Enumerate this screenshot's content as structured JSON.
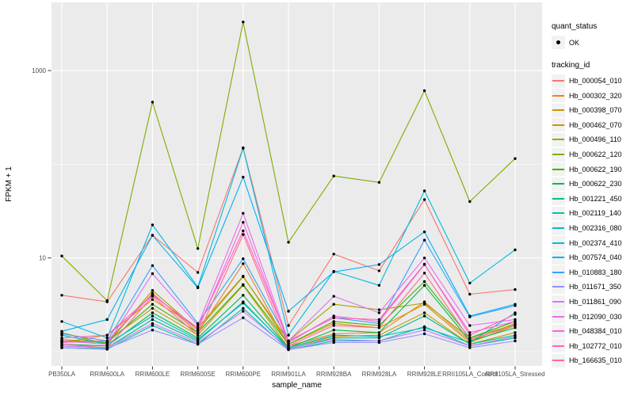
{
  "figure": {
    "colors": {
      "panel_bg": "#EBEBEB",
      "grid": "#FFFFFF",
      "tick": "#333333",
      "tick_label": "#4D4D4D",
      "axis_title": "#000000",
      "point": "#000000",
      "legend_key_bg": "#F2F2F2"
    },
    "legend": {
      "quant_status": {
        "title": "quant_status",
        "items": [
          {
            "label": "OK",
            "symbol": "point-icon"
          }
        ]
      },
      "tracking": {
        "title": "tracking_id"
      }
    }
  },
  "chart_data": {
    "type": "line",
    "title": "",
    "xlabel": "sample_name",
    "ylabel": "FPKM + 1",
    "y_scale": "log10",
    "y_major_ticks": [
      {
        "label": "1000",
        "value": 1000
      },
      {
        "label": "10",
        "value": 10
      }
    ],
    "y_minor_ticks": [
      100,
      1
    ],
    "ylim": [
      0.64,
      5400
    ],
    "grid": true,
    "legend_position": "right",
    "marker": "black point (quant_status OK)",
    "categories": [
      "PB350LA",
      "RRIM600LA",
      "RRIM600LE",
      "RRIM600SE",
      "RRIM600PE",
      "RRIM901LA",
      "RRIM928BA",
      "RRIM928LA",
      "RRIM928LE",
      "RRII105LA_Control",
      "RRII105LA_Stressed"
    ],
    "series": [
      {
        "name": "Hb_000054_010",
        "color": "#F8766D",
        "values": [
          4.0,
          3.4,
          17.5,
          7.0,
          150,
          1.9,
          11,
          7.3,
          42,
          4.1,
          4.6
        ]
      },
      {
        "name": "Hb_000302_320",
        "color": "#EA8331",
        "values": [
          1.35,
          1.25,
          4.2,
          1.6,
          8.7,
          1.15,
          1.55,
          1.6,
          3.4,
          1.3,
          2.0
        ]
      },
      {
        "name": "Hb_000398_070",
        "color": "#D89000",
        "values": [
          1.25,
          1.5,
          3.6,
          1.8,
          6.4,
          1.2,
          2.0,
          1.8,
          3.2,
          1.25,
          1.9
        ]
      },
      {
        "name": "Hb_000462_070",
        "color": "#C09B00",
        "values": [
          1.3,
          1.3,
          2.9,
          1.5,
          5.1,
          1.1,
          1.45,
          1.5,
          2.6,
          1.2,
          1.6
        ]
      },
      {
        "name": "Hb_000496_110",
        "color": "#A3A500",
        "values": [
          1.6,
          1.2,
          4.5,
          1.7,
          6.3,
          1.3,
          3.2,
          2.8,
          3.3,
          1.4,
          1.95
        ]
      },
      {
        "name": "Hb_000622_120",
        "color": "#7CAE00",
        "values": [
          10.5,
          3.5,
          460,
          12.6,
          3300,
          14.7,
          75,
          64,
          610,
          40,
          115
        ]
      },
      {
        "name": "Hb_000622_190",
        "color": "#39B600",
        "values": [
          1.3,
          1.25,
          3.2,
          1.6,
          5.2,
          1.2,
          2.1,
          1.9,
          5.6,
          1.4,
          2.1
        ]
      },
      {
        "name": "Hb_000622_230",
        "color": "#00BB4E",
        "values": [
          1.2,
          1.15,
          2.6,
          1.4,
          4.0,
          1.1,
          1.7,
          1.6,
          5.1,
          1.3,
          1.8
        ]
      },
      {
        "name": "Hb_001221_450",
        "color": "#00C087",
        "values": [
          1.15,
          1.1,
          2.2,
          1.3,
          3.4,
          1.07,
          1.4,
          1.4,
          2.4,
          1.2,
          1.5
        ]
      },
      {
        "name": "Hb_002119_140",
        "color": "#00C1AB",
        "values": [
          1.1,
          1.06,
          1.9,
          1.2,
          2.9,
          1.05,
          1.3,
          1.3,
          1.85,
          1.15,
          1.4
        ]
      },
      {
        "name": "Hb_002316_080",
        "color": "#00BFC4",
        "values": [
          1.5,
          1.2,
          2.4,
          1.35,
          3.3,
          1.1,
          1.5,
          1.45,
          1.8,
          1.25,
          2.6
        ]
      },
      {
        "name": "Hb_002374_410",
        "color": "#00BAE0",
        "values": [
          2.1,
          1.4,
          22.5,
          4.9,
          148,
          1.5,
          7.2,
          5.1,
          52,
          5.4,
          12.2
        ]
      },
      {
        "name": "Hb_007574_040",
        "color": "#00B0F6",
        "values": [
          1.65,
          2.2,
          17.4,
          4.8,
          73,
          2.7,
          7.1,
          8.5,
          19,
          2.4,
          3.2
        ]
      },
      {
        "name": "Hb_010883_180",
        "color": "#35A2FF",
        "values": [
          1.55,
          1.3,
          8.3,
          2.0,
          9.8,
          1.3,
          2.3,
          2.0,
          15.5,
          2.35,
          3.1
        ]
      },
      {
        "name": "Hb_011671_350",
        "color": "#9590FF",
        "values": [
          1.1,
          1.08,
          1.7,
          1.2,
          2.3,
          1.05,
          1.25,
          1.25,
          1.55,
          1.1,
          1.3
        ]
      },
      {
        "name": "Hb_011861_090",
        "color": "#C77CFF",
        "values": [
          1.15,
          1.1,
          2.0,
          1.25,
          2.7,
          1.08,
          1.35,
          1.3,
          1.7,
          1.15,
          1.45
        ]
      },
      {
        "name": "Hb_012090_030",
        "color": "#E76BF3",
        "values": [
          1.3,
          1.2,
          6.8,
          1.9,
          30,
          1.3,
          3.9,
          2.6,
          10,
          1.9,
          2.2
        ]
      },
      {
        "name": "Hb_048384_010",
        "color": "#FA62DB",
        "values": [
          1.25,
          1.3,
          4.1,
          1.7,
          24,
          1.25,
          2.4,
          2.1,
          8.5,
          1.6,
          2.1
        ]
      },
      {
        "name": "Hb_102772_010",
        "color": "#FF62BC",
        "values": [
          1.4,
          1.5,
          4.0,
          1.8,
          19.5,
          1.3,
          2.3,
          2.2,
          8.6,
          1.5,
          2.5
        ]
      },
      {
        "name": "Hb_166635_010",
        "color": "#FF6A98",
        "values": [
          1.2,
          1.1,
          3.9,
          1.5,
          17.8,
          1.15,
          1.9,
          1.8,
          6.9,
          1.35,
          1.9
        ]
      }
    ]
  }
}
